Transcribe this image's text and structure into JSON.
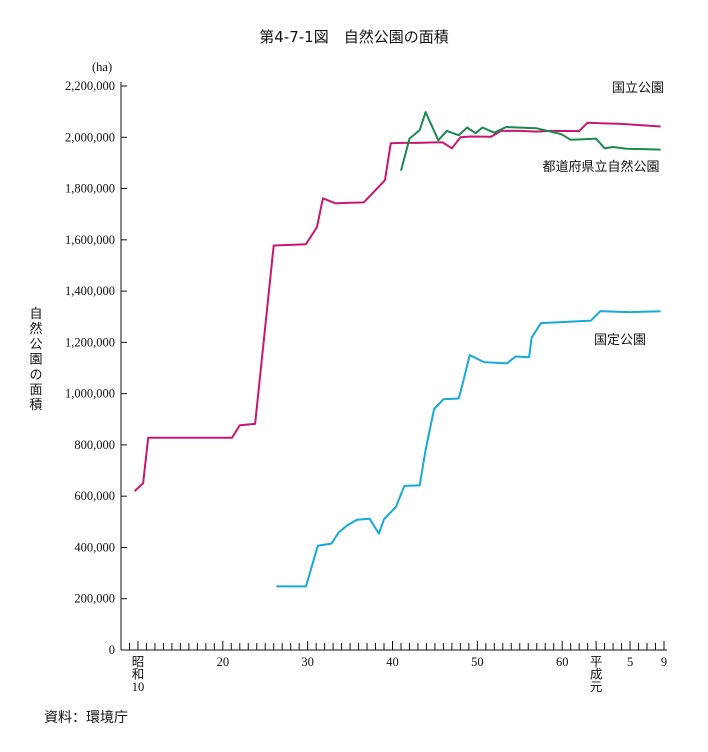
{
  "chart_data": {
    "type": "line",
    "title": "第4-7-1図　自然公園の面積",
    "unit": "(ha)",
    "ylabel": "自然公園の面積",
    "source": "資料：環境庁",
    "ylim": [
      0,
      2200000
    ],
    "xlim": [
      8,
      72
    ],
    "y_ticks": [
      "0",
      "200,000",
      "400,000",
      "600,000",
      "800,000",
      "1,000,000",
      "1,200,000",
      "1,400,000",
      "1,600,000",
      "1,800,000",
      "2,000,000",
      "2,200,000"
    ],
    "y_tick_values": [
      0,
      200000,
      400000,
      600000,
      800000,
      1000000,
      1200000,
      1400000,
      1600000,
      1800000,
      2000000,
      2200000
    ],
    "x_ticks": [
      {
        "x": 10,
        "lines": [
          "昭",
          "和",
          "10"
        ]
      },
      {
        "x": 20,
        "lines": [
          "20"
        ]
      },
      {
        "x": 30,
        "lines": [
          "30"
        ]
      },
      {
        "x": 40,
        "lines": [
          "40"
        ]
      },
      {
        "x": 50,
        "lines": [
          "50"
        ]
      },
      {
        "x": 60,
        "lines": [
          "60"
        ]
      },
      {
        "x": 64,
        "lines": [
          "平",
          "成",
          "元"
        ]
      },
      {
        "x": 68,
        "lines": [
          "5"
        ]
      },
      {
        "x": 72,
        "lines": [
          "9"
        ]
      }
    ],
    "series": [
      {
        "name": "国立公園",
        "color": "#c8186e",
        "points": [
          [
            9.6,
            620000
          ],
          [
            10.6,
            650000
          ],
          [
            11.2,
            828000
          ],
          [
            12,
            828000
          ],
          [
            14,
            828000
          ],
          [
            16,
            828000
          ],
          [
            18,
            828000
          ],
          [
            20,
            828000
          ],
          [
            21.1,
            828000
          ],
          [
            22,
            877000
          ],
          [
            23.8,
            882000
          ],
          [
            26,
            1578000
          ],
          [
            28,
            1580000
          ],
          [
            29.8,
            1583000
          ],
          [
            31.1,
            1650000
          ],
          [
            31.8,
            1762000
          ],
          [
            33.3,
            1742000
          ],
          [
            34.6,
            1744000
          ],
          [
            36.6,
            1746000
          ],
          [
            37.6,
            1780000
          ],
          [
            39.1,
            1832000
          ],
          [
            39.8,
            1977000
          ],
          [
            41,
            1978000
          ],
          [
            43,
            1978000
          ],
          [
            44.9,
            1980000
          ],
          [
            45.9,
            1980000
          ],
          [
            47,
            1957000
          ],
          [
            48,
            2000000
          ],
          [
            49.2,
            2003000
          ],
          [
            51.6,
            2002000
          ],
          [
            52.8,
            2025000
          ],
          [
            55,
            2025000
          ],
          [
            57,
            2022000
          ],
          [
            58.6,
            2025000
          ],
          [
            62,
            2024000
          ],
          [
            63,
            2057000
          ],
          [
            64.5,
            2055000
          ],
          [
            67,
            2052000
          ],
          [
            69,
            2048000
          ],
          [
            71.6,
            2042000
          ]
        ]
      },
      {
        "name": "都道府県立自然公園",
        "color": "#1a8a50",
        "points": [
          [
            41,
            1870000
          ],
          [
            42,
            1995000
          ],
          [
            43.2,
            2028000
          ],
          [
            43.9,
            2098000
          ],
          [
            45.4,
            1988000
          ],
          [
            46.4,
            2025000
          ],
          [
            47.8,
            2008000
          ],
          [
            48.8,
            2038000
          ],
          [
            49.8,
            2016000
          ],
          [
            50.6,
            2038000
          ],
          [
            52,
            2018000
          ],
          [
            53.4,
            2040000
          ],
          [
            57,
            2035000
          ],
          [
            59.9,
            2012000
          ],
          [
            61,
            1990000
          ],
          [
            62.5,
            1992000
          ],
          [
            64,
            1995000
          ],
          [
            65,
            1957000
          ],
          [
            66,
            1962000
          ],
          [
            67.6,
            1955000
          ],
          [
            69.6,
            1954000
          ],
          [
            71.6,
            1952000
          ]
        ]
      },
      {
        "name": "国定公園",
        "color": "#17a9d8",
        "points": [
          [
            26.3,
            248000
          ],
          [
            28,
            248000
          ],
          [
            29.8,
            248000
          ],
          [
            31.2,
            407000
          ],
          [
            32.8,
            415000
          ],
          [
            33.7,
            460000
          ],
          [
            34.7,
            487000
          ],
          [
            35.8,
            508000
          ],
          [
            37.3,
            512000
          ],
          [
            38.4,
            454000
          ],
          [
            39,
            510000
          ],
          [
            40.4,
            558000
          ],
          [
            41.4,
            640000
          ],
          [
            43.2,
            642000
          ],
          [
            43.9,
            780000
          ],
          [
            44.9,
            940000
          ],
          [
            46,
            978000
          ],
          [
            47.8,
            981000
          ],
          [
            48.2,
            1030000
          ],
          [
            49.1,
            1150000
          ],
          [
            50.8,
            1123000
          ],
          [
            53.5,
            1118000
          ],
          [
            54.5,
            1145000
          ],
          [
            56.1,
            1142000
          ],
          [
            56.4,
            1218000
          ],
          [
            57.5,
            1275000
          ],
          [
            63.4,
            1285000
          ],
          [
            64.5,
            1322000
          ],
          [
            66,
            1320000
          ],
          [
            68,
            1318000
          ],
          [
            70,
            1320000
          ],
          [
            71.6,
            1321000
          ]
        ]
      }
    ]
  }
}
